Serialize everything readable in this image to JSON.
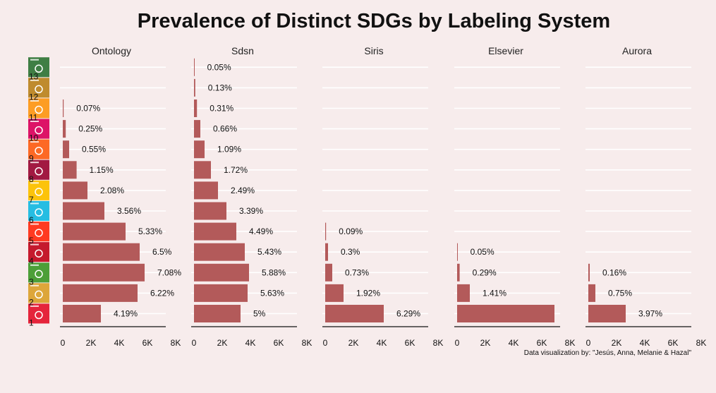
{
  "chart_data": {
    "type": "bar",
    "orientation": "horizontal",
    "title": "Prevalence of Distinct SDGs by Labeling System",
    "caption": "Data visualization by: \"Jesús, Anna, Melanie & Hazal\"",
    "xlim": [
      0,
      9000
    ],
    "xticks": [
      0,
      2000,
      4000,
      6000,
      8000
    ],
    "xtick_labels": [
      "0",
      "2K",
      "4K",
      "6K",
      "8K"
    ],
    "grid": "horizontal lines only",
    "bar_color": "#b35a5a",
    "categories": [
      "1",
      "2",
      "3",
      "4",
      "5",
      "6",
      "7",
      "8",
      "9",
      "10",
      "11",
      "12",
      "13"
    ],
    "row_number_labels": [
      "1",
      "2",
      "3",
      "4",
      "5",
      "6",
      "7",
      "8",
      "9",
      "10",
      "11",
      "12",
      "13"
    ],
    "sdg_icon_colors": [
      "#e5243b",
      "#dda63a",
      "#4c9f38",
      "#c5192d",
      "#ff3a21",
      "#26bde2",
      "#fcc30b",
      "#a21942",
      "#fd6925",
      "#dd1367",
      "#fd9d24",
      "#bf8b2e",
      "#3f7e44"
    ],
    "facets": [
      {
        "name": "Ontology",
        "values": [
          2700,
          5300,
          5800,
          5450,
          4450,
          2950,
          1750,
          980,
          450,
          210,
          60,
          null,
          null
        ],
        "labels": [
          "4.19%",
          "6.22%",
          "7.08%",
          "6.5%",
          "5.33%",
          "3.56%",
          "2.08%",
          "1.15%",
          "0.55%",
          "0.25%",
          "0.07%",
          "",
          ""
        ]
      },
      {
        "name": "Sdsn",
        "values": [
          3300,
          3800,
          3900,
          3600,
          3000,
          2300,
          1700,
          1200,
          750,
          450,
          210,
          90,
          30
        ],
        "labels": [
          "5%",
          "5.63%",
          "5.88%",
          "5.43%",
          "4.49%",
          "3.39%",
          "2.49%",
          "1.72%",
          "1.09%",
          "0.66%",
          "0.31%",
          "0.13%",
          "0.05%"
        ]
      },
      {
        "name": "Siris",
        "values": [
          4150,
          1300,
          500,
          200,
          60,
          null,
          null,
          null,
          null,
          null,
          null,
          null,
          null
        ],
        "labels": [
          "6.29%",
          "1.92%",
          "0.73%",
          "0.3%",
          "0.09%",
          "",
          "",
          "",
          "",
          "",
          "",
          "",
          ""
        ]
      },
      {
        "name": "Elsevier",
        "values": [
          6900,
          900,
          180,
          30,
          null,
          null,
          null,
          null,
          null,
          null,
          null,
          null,
          null
        ],
        "labels": [
          "",
          "1.41%",
          "0.29%",
          "0.05%",
          "",
          "",
          "",
          "",
          "",
          "",
          "",
          "",
          ""
        ]
      },
      {
        "name": "Aurora",
        "values": [
          2650,
          500,
          100,
          null,
          null,
          null,
          null,
          null,
          null,
          null,
          null,
          null,
          null
        ],
        "labels": [
          "3.97%",
          "0.75%",
          "0.16%",
          "",
          "",
          "",
          "",
          "",
          "",
          "",
          "",
          "",
          ""
        ]
      }
    ]
  }
}
